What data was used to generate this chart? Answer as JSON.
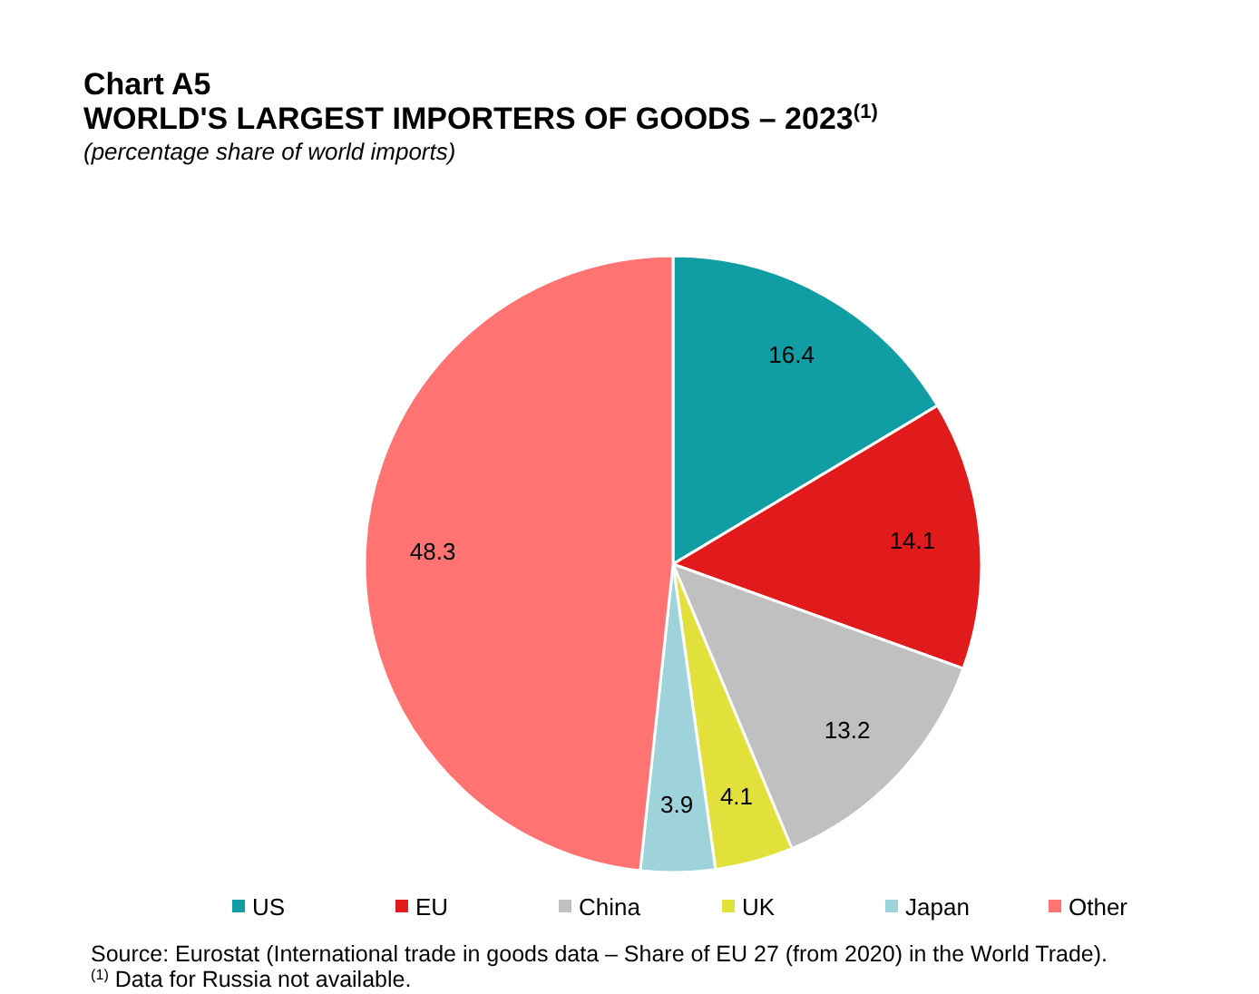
{
  "chart_data": {
    "type": "pie",
    "title": "Chart A5\nWORLD'S LARGEST IMPORTERS OF GOODS – 2023$^{(1)}$",
    "subtitle": "(percentage share of world imports)",
    "categories": [
      "US",
      "EU",
      "China",
      "UK",
      "Japan",
      "Other"
    ],
    "values": [
      16.4,
      14.1,
      13.2,
      4.1,
      3.9,
      48.3
    ],
    "colors": [
      "#109da4",
      "#e11b1b",
      "#c0c0c0",
      "#e2e03a",
      "#9fd3dc",
      "#ff7373"
    ],
    "data_labels": true,
    "legend": "bottom",
    "annotations": [
      "Source: Eurostat (International trade in goods data – Share of EU 27 (from 2020) in the World Trade).",
      "$^{(1)}$ Data for Russia not available."
    ]
  }
}
